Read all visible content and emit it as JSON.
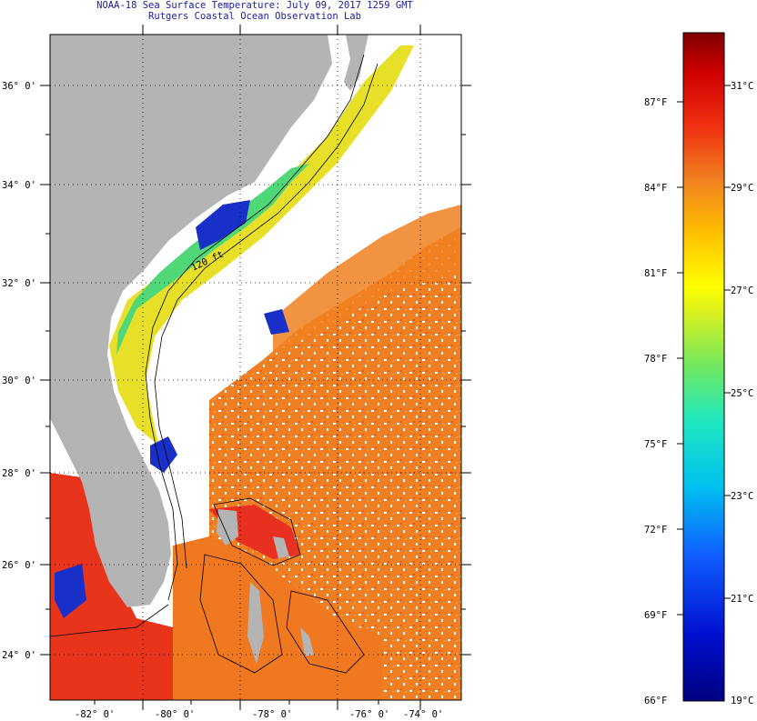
{
  "title": {
    "line1": "NOAA-18 Sea Surface Temperature:  July 09, 2017 1259 GMT",
    "line2": "Rutgers Coastal Ocean Observation Lab"
  },
  "map": {
    "lat_labels": [
      "36° 0'",
      "34° 0'",
      "32° 0'",
      "30° 0'",
      "28° 0'",
      "26° 0'",
      "24° 0'"
    ],
    "lon_labels": [
      "-82° 0'",
      "-80° 0'",
      "-78° 0'",
      "-76° 0'",
      "-74° 0'"
    ],
    "contour_label": "120 ft",
    "colors": {
      "land": "#b4b4b4",
      "cloud": "#ffffff",
      "warm": "#f07820",
      "hot": "#e82818",
      "green": "#50d878",
      "yellow": "#e8e028",
      "blue": "#1830c8"
    }
  },
  "colorbar": {
    "fahrenheit_labels": [
      "87°F",
      "84°F",
      "81°F",
      "78°F",
      "75°F",
      "72°F",
      "69°F",
      "66°F"
    ],
    "celsius_labels": [
      "31°C",
      "29°C",
      "27°C",
      "25°C",
      "23°C",
      "21°C",
      "19°C"
    ]
  }
}
